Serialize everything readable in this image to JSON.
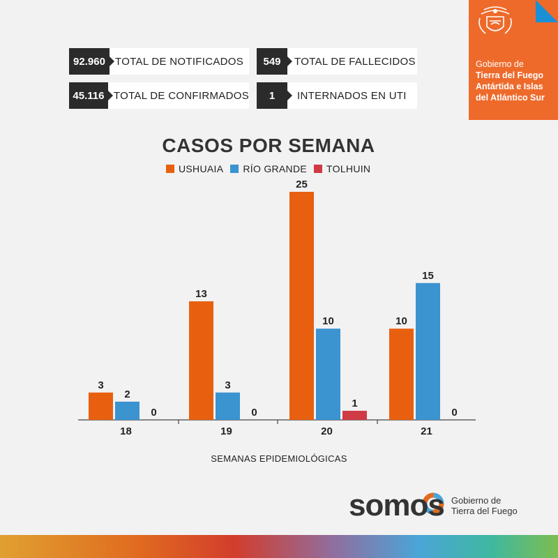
{
  "stats": [
    {
      "value": "92.960",
      "label": "TOTAL DE NOTIFICADOS"
    },
    {
      "value": "549",
      "label": "TOTAL DE FALLECIDOS"
    },
    {
      "value": "45.116",
      "label": "TOTAL DE CONFIRMADOS"
    },
    {
      "value": "1",
      "label": "INTERNADOS EN UTI"
    }
  ],
  "gov_badge": {
    "line1": "Gobierno de",
    "line2": "Tierra del Fuego",
    "line3": "Antártida e Islas",
    "line4": "del Atlántico Sur"
  },
  "chart_data": {
    "type": "bar",
    "title": "CASOS POR SEMANA",
    "xlabel": "SEMANAS EPIDEMIOLÓGICAS",
    "ylabel": "",
    "categories": [
      "18",
      "19",
      "20",
      "21"
    ],
    "series": [
      {
        "name": "USHUAIA",
        "color": "#e8600f",
        "values": [
          3,
          13,
          25,
          10
        ]
      },
      {
        "name": "RÍO GRANDE",
        "color": "#3b93d0",
        "values": [
          2,
          3,
          10,
          15
        ]
      },
      {
        "name": "TOLHUIN",
        "color": "#d03a45",
        "values": [
          0,
          0,
          1,
          0
        ]
      }
    ],
    "ylim": [
      0,
      25
    ],
    "grid": false,
    "legend": "top-center",
    "data_labels": true
  },
  "footer": {
    "brand": "somos",
    "sub1": "Gobierno de",
    "sub2": "Tierra del Fuego"
  }
}
